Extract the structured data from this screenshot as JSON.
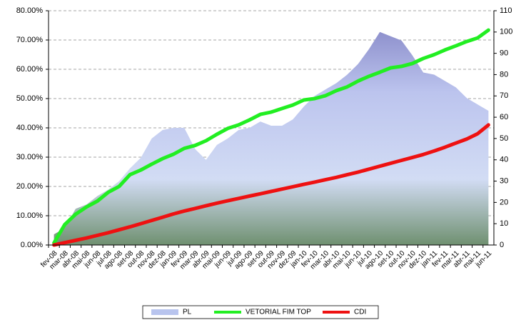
{
  "chart_data": {
    "type": "line",
    "categories": [
      "fev-08",
      "mar-08",
      "abr-08",
      "mai-08",
      "jun-08",
      "jul-08",
      "ago-08",
      "set-08",
      "out-08",
      "nov-08",
      "dez-08",
      "jan-09",
      "fev-09",
      "mar-09",
      "abr-09",
      "mai-09",
      "jun-09",
      "jul-09",
      "ago-09",
      "set-09",
      "out-09",
      "nov-09",
      "dez-09",
      "jan-10",
      "fev-10",
      "mar-10",
      "abr-10",
      "mai-10",
      "jun-10",
      "jul-10",
      "ago-10",
      "set-10",
      "out-10",
      "nov-10",
      "dez-10",
      "jan-11",
      "fev-11",
      "mar-11",
      "abr-11",
      "mai-11",
      "jun-11"
    ],
    "series": [
      {
        "name": "PL",
        "type": "area",
        "axis": "y2",
        "color": "#b8c4ee",
        "values": [
          5,
          8,
          17,
          19,
          23,
          26,
          30,
          36,
          41,
          50,
          54,
          55,
          55,
          45,
          40,
          47,
          50,
          54,
          55,
          58,
          56,
          56,
          59,
          65,
          70,
          73,
          76,
          80,
          85,
          92,
          100,
          98,
          96,
          89,
          81,
          80,
          77,
          74,
          69,
          66,
          63
        ]
      },
      {
        "name": "VETORIAL FIM TOP",
        "type": "line",
        "color": "#22ee22",
        "values": [
          0.7,
          7,
          10.5,
          13,
          15,
          18,
          20,
          24,
          25.6,
          27.6,
          29.5,
          31,
          33,
          34,
          35.6,
          37.8,
          39.8,
          41,
          42.7,
          44.6,
          45.4,
          46.6,
          47.8,
          49.5,
          50,
          51,
          52.7,
          54,
          56,
          57.6,
          59,
          60.5,
          61,
          62,
          63.7,
          65,
          66.6,
          68,
          69.5,
          70.7,
          73.4
        ]
      },
      {
        "name": "CDI",
        "type": "line",
        "color": "#ee1111",
        "values": [
          0,
          0.8,
          1.6,
          2.4,
          3.3,
          4.2,
          5.2,
          6.2,
          7.3,
          8.4,
          9.5,
          10.6,
          11.6,
          12.5,
          13.4,
          14.3,
          15.1,
          15.9,
          16.7,
          17.5,
          18.3,
          19.1,
          19.9,
          20.7,
          21.5,
          22.3,
          23.1,
          24,
          24.9,
          25.9,
          26.9,
          27.9,
          28.9,
          29.9,
          30.9,
          32.1,
          33.4,
          34.8,
          36.2,
          38,
          41
        ]
      }
    ],
    "ylim": [
      0,
      80
    ],
    "yticks": [
      {
        "value": 0,
        "label": "0.00%"
      },
      {
        "value": 10,
        "label": "10.00%"
      },
      {
        "value": 20,
        "label": "20.00%"
      },
      {
        "value": 30,
        "label": "30.00%"
      },
      {
        "value": 40,
        "label": "40.00%"
      },
      {
        "value": 50,
        "label": "50.00%"
      },
      {
        "value": 60,
        "label": "60.00%"
      },
      {
        "value": 70,
        "label": "70.00%"
      },
      {
        "value": 80,
        "label": "80.00%"
      }
    ],
    "y2lim": [
      0,
      110
    ],
    "y2ticks": [
      0,
      10,
      20,
      30,
      40,
      50,
      60,
      70,
      80,
      90,
      100,
      110
    ],
    "grid": true,
    "legend": "bottom"
  }
}
